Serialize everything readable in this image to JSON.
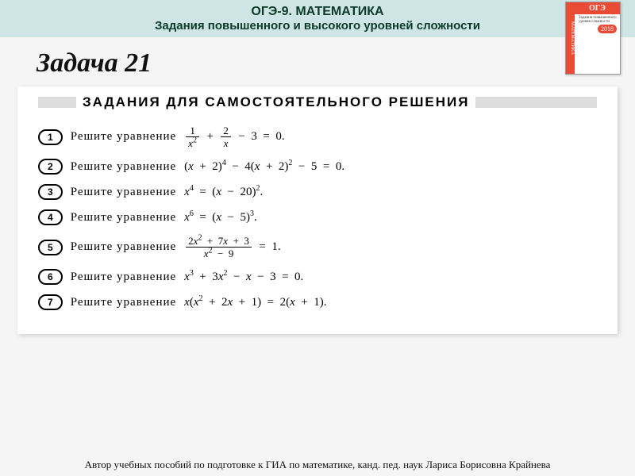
{
  "header": {
    "line1": "ОГЭ-9.  МАТЕМАТИКА",
    "line2": "Задания повышенного и высокого уровней сложности"
  },
  "book": {
    "badge": "ОГЭ",
    "year": "2018",
    "spine": "МАТЕМАТИКА",
    "sub": "Задания повышенного уровня сложности",
    "grade": "9"
  },
  "title": "Задача 21",
  "section_banner": "ЗАДАНИЯ  ДЛЯ  САМОСТОЯТЕЛЬНОГО  РЕШЕНИЯ",
  "prompt": "Решите  уравнение",
  "problems": [
    {
      "num": "1",
      "math_html": "<span class='frac'><span class='top n'>1</span><span class='bot'>x<sup>2</sup></span></span> <span class='n'>&nbsp;+&nbsp;</span> <span class='frac'><span class='top n'>2</span><span class='bot'>x</span></span> <span class='n'>&nbsp;&minus;&nbsp; 3 &nbsp;=&nbsp; 0.</span>"
    },
    {
      "num": "2",
      "math_html": "<span class='n'>(</span>x <span class='n'>&nbsp;+&nbsp; 2)</span><sup>4</sup> <span class='n'>&nbsp;&minus;&nbsp; 4(</span>x <span class='n'>&nbsp;+&nbsp; 2)</span><sup>2</sup> <span class='n'>&nbsp;&minus;&nbsp; 5 &nbsp;=&nbsp; 0.</span>"
    },
    {
      "num": "3",
      "math_html": "x<sup>4</sup> <span class='n'>&nbsp;=&nbsp; (</span>x <span class='n'>&nbsp;&minus;&nbsp; 20)</span><sup>2</sup><span class='n'>.</span>"
    },
    {
      "num": "4",
      "math_html": "x<sup>6</sup> <span class='n'>&nbsp;=&nbsp; (</span>x <span class='n'>&nbsp;&minus;&nbsp; 5)</span><sup>3</sup><span class='n'>.</span>"
    },
    {
      "num": "5",
      "math_html": "<span class='frac'><span class='top'><span class='n'>2</span>x<sup>2</sup> <span class='n'>&nbsp;+&nbsp; 7</span>x <span class='n'>&nbsp;+&nbsp; 3</span></span><span class='bot'>x<sup>2</sup> <span class='n'>&nbsp;&minus;&nbsp; 9</span></span></span> <span class='n'>&nbsp;=&nbsp; 1.</span>"
    },
    {
      "num": "6",
      "math_html": "x<sup>3</sup> <span class='n'>&nbsp;+&nbsp; 3</span>x<sup>2</sup> <span class='n'>&nbsp;&minus;&nbsp;</span> x <span class='n'>&nbsp;&minus;&nbsp; 3 &nbsp;=&nbsp; 0.</span>"
    },
    {
      "num": "7",
      "math_html": "x<span class='n'>(</span>x<sup>2</sup> <span class='n'>&nbsp;+&nbsp; 2</span>x <span class='n'>&nbsp;+&nbsp; 1) &nbsp;=&nbsp; 2(</span>x <span class='n'>&nbsp;+&nbsp; 1).</span>"
    }
  ],
  "footer": "Автор учебных пособий по подготовке к ГИА по математике,  канд. пед. наук  Лариса Борисовна Крайнева",
  "colors": {
    "header_bg": "#cfe5e5",
    "accent_red": "#e94b35",
    "banner_gray": "#dddddd"
  }
}
